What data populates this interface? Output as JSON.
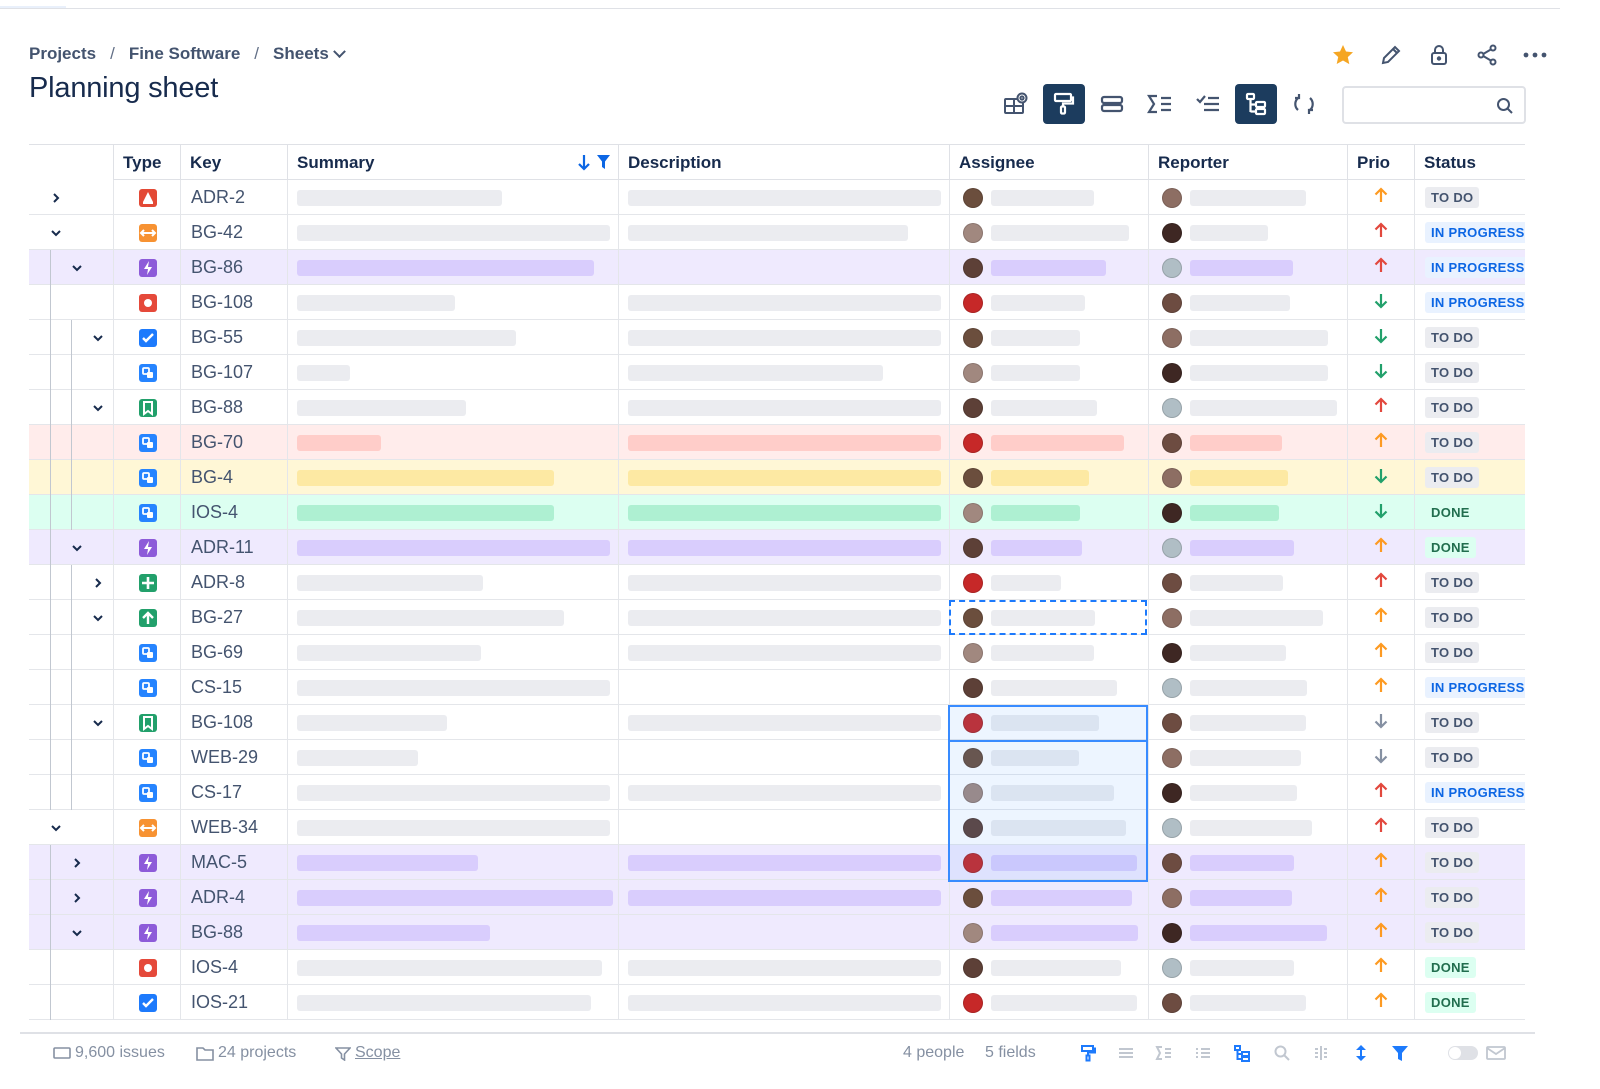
{
  "breadcrumb": {
    "projects": "Projects",
    "separator": "/",
    "project": "Fine Software",
    "sheets": "Sheets"
  },
  "page_title": "Planning sheet",
  "top_actions": [
    "star-icon",
    "pencil-icon",
    "lock-icon",
    "share-icon",
    "more-icon"
  ],
  "toolbar": [
    "sheet-settings-icon",
    "paint-format-icon",
    "row-height-icon",
    "sum-icon",
    "checklist-icon",
    "hierarchy-icon",
    "refresh-icon"
  ],
  "search": {
    "placeholder": ""
  },
  "columns": {
    "type": "Type",
    "key": "Key",
    "summary": "Summary",
    "description": "Description",
    "assignee": "Assignee",
    "reporter": "Reporter",
    "prio": "Prio",
    "status": "Status"
  },
  "colors": {
    "purple_row": "#efeafe",
    "red_row": "#ffeceb",
    "yellow_row": "#fff7d6",
    "green_row": "#dcfff1",
    "selection": "#388bff",
    "prio_high": "#e2483d",
    "prio_medium": "#fd9a22",
    "prio_low": "#22a06b",
    "prio_lowest": "#8590a2"
  },
  "rows": [
    {
      "key": "ADR-2",
      "type": "incident",
      "expand": "collapsed",
      "depth": 0,
      "highlight": "",
      "prio": "medium",
      "status": "TO DO"
    },
    {
      "key": "BG-42",
      "type": "change",
      "expand": "expanded",
      "depth": 0,
      "highlight": "",
      "prio": "high",
      "status": "IN PROGRESS"
    },
    {
      "key": "BG-86",
      "type": "epic",
      "expand": "expanded",
      "depth": 1,
      "highlight": "purple",
      "prio": "high",
      "status": "IN PROGRESS"
    },
    {
      "key": "BG-108",
      "type": "bug",
      "expand": "",
      "depth": 1,
      "highlight": "",
      "prio": "low",
      "status": "IN PROGRESS"
    },
    {
      "key": "BG-55",
      "type": "task",
      "expand": "expanded",
      "depth": 2,
      "highlight": "",
      "prio": "low",
      "status": "TO DO"
    },
    {
      "key": "BG-107",
      "type": "subtask",
      "expand": "",
      "depth": 2,
      "highlight": "",
      "prio": "low",
      "status": "TO DO"
    },
    {
      "key": "BG-88",
      "type": "story",
      "expand": "expanded",
      "depth": 2,
      "highlight": "",
      "prio": "high",
      "status": "TO DO"
    },
    {
      "key": "BG-70",
      "type": "subtask",
      "expand": "",
      "depth": 2,
      "highlight": "red",
      "prio": "medium",
      "status": "TO DO"
    },
    {
      "key": "BG-4",
      "type": "subtask",
      "expand": "",
      "depth": 2,
      "highlight": "yellow",
      "prio": "low",
      "status": "TO DO"
    },
    {
      "key": "IOS-4",
      "type": "subtask",
      "expand": "",
      "depth": 2,
      "highlight": "green",
      "prio": "low",
      "status": "DONE"
    },
    {
      "key": "ADR-11",
      "type": "epic",
      "expand": "expanded",
      "depth": 1,
      "highlight": "purple",
      "prio": "medium",
      "status": "DONE"
    },
    {
      "key": "ADR-8",
      "type": "new-feature",
      "expand": "collapsed",
      "depth": 2,
      "highlight": "",
      "prio": "high",
      "status": "TO DO"
    },
    {
      "key": "BG-27",
      "type": "improvement",
      "expand": "expanded",
      "depth": 2,
      "highlight": "",
      "prio": "medium",
      "status": "TO DO"
    },
    {
      "key": "BG-69",
      "type": "subtask",
      "expand": "",
      "depth": 2,
      "highlight": "",
      "prio": "medium",
      "status": "TO DO"
    },
    {
      "key": "CS-15",
      "type": "subtask",
      "expand": "",
      "depth": 2,
      "highlight": "",
      "prio": "medium",
      "status": "IN PROGRESS"
    },
    {
      "key": "BG-108",
      "type": "story",
      "expand": "expanded",
      "depth": 2,
      "highlight": "",
      "prio": "lowest",
      "status": "TO DO"
    },
    {
      "key": "WEB-29",
      "type": "subtask",
      "expand": "",
      "depth": 2,
      "highlight": "",
      "prio": "lowest",
      "status": "TO DO"
    },
    {
      "key": "CS-17",
      "type": "subtask",
      "expand": "",
      "depth": 2,
      "highlight": "",
      "prio": "high",
      "status": "IN PROGRESS"
    },
    {
      "key": "WEB-34",
      "type": "change",
      "expand": "expanded",
      "depth": 0,
      "highlight": "",
      "prio": "high",
      "status": "TO DO"
    },
    {
      "key": "MAC-5",
      "type": "epic",
      "expand": "collapsed",
      "depth": 1,
      "highlight": "purple",
      "prio": "medium",
      "status": "TO DO"
    },
    {
      "key": "ADR-4",
      "type": "epic",
      "expand": "collapsed",
      "depth": 1,
      "highlight": "purple",
      "prio": "medium",
      "status": "TO DO"
    },
    {
      "key": "BG-88",
      "type": "epic",
      "expand": "expanded",
      "depth": 1,
      "highlight": "purple",
      "prio": "medium",
      "status": "TO DO"
    },
    {
      "key": "IOS-4",
      "type": "bug",
      "expand": "",
      "depth": 1,
      "highlight": "",
      "prio": "medium",
      "status": "DONE"
    },
    {
      "key": "IOS-21",
      "type": "task",
      "expand": "",
      "depth": 1,
      "highlight": "",
      "prio": "medium",
      "status": "DONE"
    }
  ],
  "footer": {
    "issues": "9,600 issues",
    "projects": "24 projects",
    "scope": "Scope",
    "people": "4 people",
    "fields": "5 fields"
  }
}
